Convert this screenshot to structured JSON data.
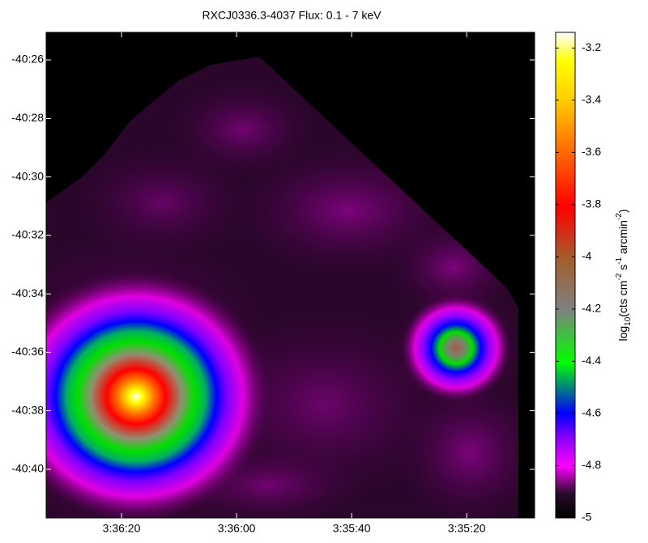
{
  "chart_data": {
    "type": "image",
    "title": "RXCJ0336.3-4037 Flux: 0.1 - 7 keV",
    "xlim": [
      12993.1,
      12908.2
    ],
    "xticks": [
      {
        "value": 12980,
        "label": "3:36:20"
      },
      {
        "value": 12960,
        "label": "3:36:00"
      },
      {
        "value": 12940,
        "label": "3:35:40"
      },
      {
        "value": 12920,
        "label": "3:35:20"
      }
    ],
    "ylim": [
      -40.6944,
      -40.4176
    ],
    "yticks": [
      {
        "value": -40.4333,
        "label": "-40:26"
      },
      {
        "value": -40.4667,
        "label": "-40:28"
      },
      {
        "value": -40.5,
        "label": "-40:30"
      },
      {
        "value": -40.5333,
        "label": "-40:32"
      },
      {
        "value": -40.5667,
        "label": "-40:34"
      },
      {
        "value": -40.6,
        "label": "-40:36"
      },
      {
        "value": -40.6333,
        "label": "-40:38"
      },
      {
        "value": -40.6667,
        "label": "-40:40"
      }
    ],
    "clim": [
      -5,
      -3.14
    ],
    "cticks": [
      -3.2,
      -3.4,
      -3.6,
      -3.8,
      -4,
      -4.2,
      -4.4,
      -4.6,
      -4.8,
      -5
    ],
    "colorbar_label": [
      "log",
      "10",
      "(cts cm",
      "-2",
      " s",
      "-1",
      " arcmin",
      "-2",
      ")"
    ]
  }
}
